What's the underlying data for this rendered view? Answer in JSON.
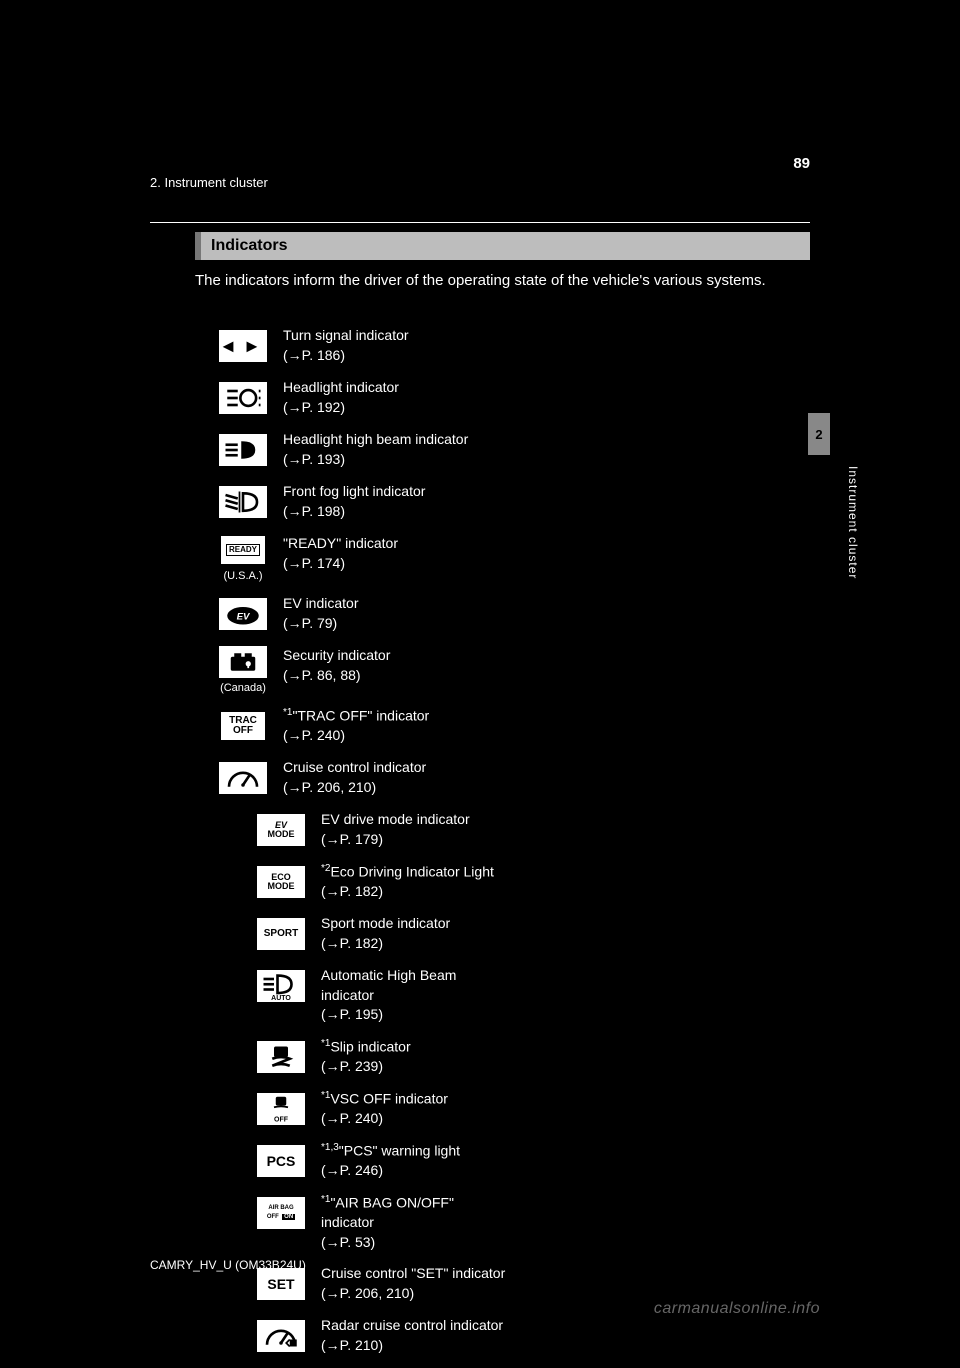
{
  "page": {
    "number": "89",
    "header": "2. Instrument cluster",
    "section_title": "Indicators",
    "intro": "The indicators inform the driver of the operating state of the vehicle's various systems.",
    "side_tab": "2",
    "side_label": "Instrument cluster",
    "footer": "CAMRY_HV_U (OM33B24U)",
    "watermark": "carmanualsonline.info"
  },
  "left": [
    {
      "name": "Turn signal indicator",
      "ref": "(→P. 186)",
      "icon": "turn-signal"
    },
    {
      "name": "Headlight indicator",
      "ref": "(→P. 192)",
      "icon": "headlight"
    },
    {
      "name": "Headlight high beam indicator",
      "ref": "(→P. 193)",
      "icon": "high-beam"
    },
    {
      "name": "Front fog light indicator",
      "ref": "(→P. 198)",
      "icon": "fog"
    },
    {
      "name": "\"READY\" indicator",
      "ref": "(→P. 174)",
      "icon": "ready",
      "note": "(U.S.A.)"
    },
    {
      "name": "EV indicator",
      "ref": "(→P. 79)",
      "icon": "ev"
    },
    {
      "name": "Security indicator",
      "ref": "(→P. 86, 88)",
      "icon": "security",
      "note": "(Canada)"
    },
    {
      "name": "\"TRAC OFF\" indicator",
      "ref": "(→P. 240)",
      "icon": "trac-off",
      "sup": "*1"
    },
    {
      "name": "Cruise control indicator",
      "ref": "(→P. 206, 210)",
      "icon": "cruise"
    }
  ],
  "right": [
    {
      "name": "EV drive mode indicator",
      "ref": "(→P. 179)",
      "icon": "ev-mode"
    },
    {
      "name": "Eco Driving Indicator Light",
      "ref": "(→P. 182)",
      "icon": "eco-mode",
      "sup": "*2"
    },
    {
      "name": "Sport mode indicator",
      "ref": "(→P. 182)",
      "icon": "sport"
    },
    {
      "name": "Automatic High Beam indicator",
      "ref": "(→P. 195)",
      "icon": "auto-beam"
    },
    {
      "name": "Slip indicator",
      "ref": "(→P. 239)",
      "icon": "slip",
      "sup": "*1"
    },
    {
      "name": "VSC OFF indicator",
      "ref": "(→P. 240)",
      "icon": "vsc-off",
      "sup": "*1"
    },
    {
      "name": "\"PCS\" warning light",
      "ref": "(→P. 246)",
      "icon": "pcs",
      "sup": "*1,3"
    },
    {
      "name": "\"AIR BAG ON/OFF\" indicator",
      "ref": "(→P. 53)",
      "icon": "airbag",
      "sup": "*1"
    },
    {
      "name": "Cruise control \"SET\" indicator",
      "ref": "(→P. 206, 210)",
      "icon": "set"
    },
    {
      "name": "Radar cruise control indicator",
      "ref": "(→P. 210)",
      "icon": "radar-cruise"
    }
  ],
  "icons": {
    "turn-signal": "◄ ►",
    "headlight": "svg-headlight",
    "high-beam": "svg-highbeam",
    "fog": "svg-fog",
    "ready": "READY",
    "ev": "svg-ev",
    "security": "svg-security",
    "trac-off": "TRAC\nOFF",
    "cruise": "svg-cruise",
    "ev-mode": "EV\nMODE",
    "eco-mode": "ECO\nMODE",
    "sport": "SPORT",
    "auto-beam": "svg-autobeam",
    "slip": "svg-slip",
    "vsc-off": "svg-vscoff",
    "pcs": "PCS",
    "airbag": "AIR BAG\nOFF  ON",
    "set": "SET",
    "radar-cruise": "svg-radarcruise"
  }
}
